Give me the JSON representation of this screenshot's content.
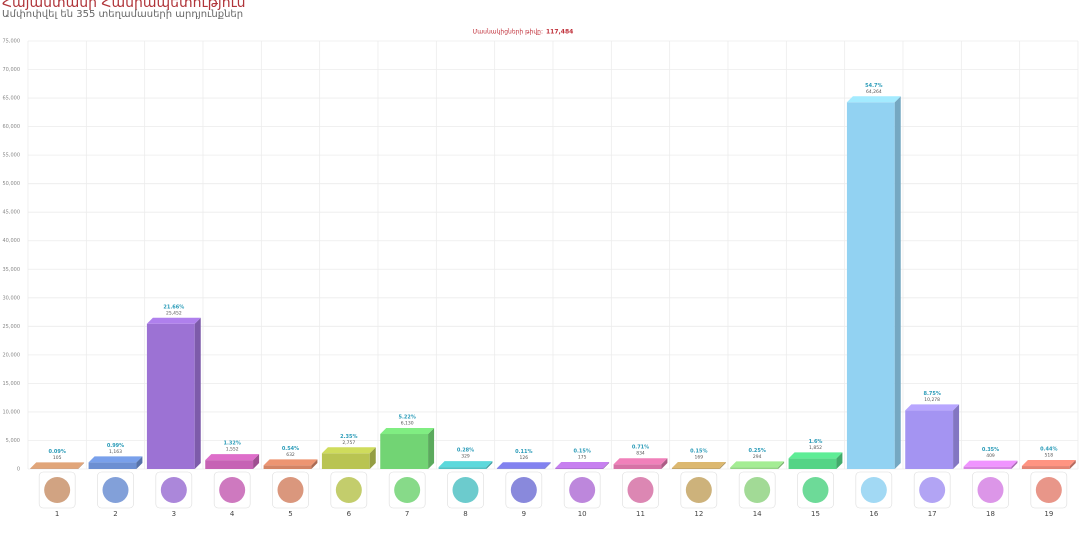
{
  "chart_data": {
    "type": "bar",
    "title": "Հայաստանի Հանրապետություն",
    "subtitle": "Ամփոփվել են 355 տեղամասերի արդյունքներ",
    "participants_label": "Մասնակիցների թիվը:",
    "participants": "117,484",
    "categories": [
      "1",
      "2",
      "3",
      "4",
      "5",
      "6",
      "7",
      "8",
      "9",
      "10",
      "11",
      "12",
      "14",
      "15",
      "16",
      "17",
      "18",
      "19"
    ],
    "values": [
      105,
      1163,
      25452,
      1552,
      632,
      2757,
      6130,
      329,
      126,
      175,
      834,
      169,
      294,
      1852,
      64264,
      10278,
      409,
      518
    ],
    "value_labels": [
      "105",
      "1,163",
      "25,452",
      "1,552",
      "632",
      "2,757",
      "6,130",
      "329",
      "126",
      "175",
      "834",
      "169",
      "294",
      "1,852",
      "64,264",
      "10,278",
      "409",
      "518"
    ],
    "percent_labels": [
      "0.09%",
      "0.99%",
      "21.66%",
      "1.32%",
      "0.54%",
      "2.35%",
      "5.22%",
      "0.28%",
      "0.11%",
      "0.15%",
      "0.71%",
      "0.15%",
      "0.25%",
      "1.6%",
      "54.7%",
      "8.75%",
      "0.35%",
      "0.44%"
    ],
    "colors": [
      "#c9936c",
      "#6c8fd2",
      "#9c72d4",
      "#c662b4",
      "#d48566",
      "#b9c452",
      "#72d474",
      "#52c2c4",
      "#7474d6",
      "#b272d6",
      "#d672a6",
      "#c4a464",
      "#92d484",
      "#54d486",
      "#92d2f2",
      "#a494f2",
      "#d684e4",
      "#e48474"
    ],
    "ylim": [
      0,
      75000
    ],
    "yticks": [
      0,
      {
        "value": 5000,
        "label": "5,000"
      },
      {
        "value": 10000,
        "label": "10,000"
      },
      {
        "value": 15000,
        "label": "15,000"
      },
      {
        "value": 20000,
        "label": "20,000"
      },
      {
        "value": 25000,
        "label": "25,000"
      },
      {
        "value": 30000,
        "label": "30,000"
      },
      {
        "value": 35000,
        "label": "35,000"
      },
      {
        "value": 40000,
        "label": "40,000"
      },
      {
        "value": 45000,
        "label": "45,000"
      },
      {
        "value": 50000,
        "label": "50,000"
      },
      {
        "value": 55000,
        "label": "55,000"
      },
      {
        "value": 60000,
        "label": "60,000"
      },
      {
        "value": 65000,
        "label": "65,000"
      },
      {
        "value": 70000,
        "label": "70,000"
      },
      {
        "value": 75000,
        "label": "75,000"
      }
    ],
    "grid": true
  }
}
